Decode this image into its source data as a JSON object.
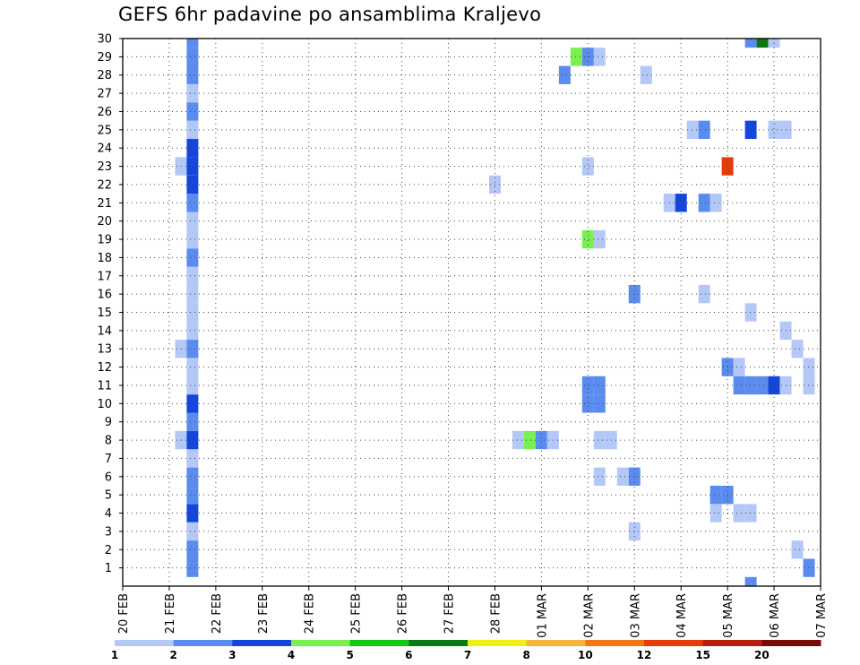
{
  "chart_data": {
    "type": "heatmap",
    "title": "GEFS 6hr padavine po ansamblima Kraljevo",
    "x_tick_labels": [
      "20 FEB",
      "21 FEB",
      "22 FEB",
      "23 FEB",
      "24 FEB",
      "25 FEB",
      "26 FEB",
      "27 FEB",
      "28 FEB",
      "01 MAR",
      "02 MAR",
      "03 MAR",
      "04 MAR",
      "05 MAR",
      "06 MAR",
      "07 MAR"
    ],
    "y_tick_labels": [
      "1",
      "2",
      "3",
      "4",
      "5",
      "6",
      "7",
      "8",
      "9",
      "10",
      "11",
      "12",
      "13",
      "14",
      "15",
      "16",
      "17",
      "18",
      "19",
      "20",
      "21",
      "22",
      "23",
      "24",
      "25",
      "26",
      "27",
      "28",
      "29",
      "30"
    ],
    "xlim": [
      0,
      15
    ],
    "ylim": [
      0,
      30
    ],
    "grid": true,
    "members": 30,
    "time_step_days": 0.25,
    "levels": [
      "1",
      "2",
      "3",
      "4",
      "5",
      "6",
      "7",
      "8",
      "10",
      "12",
      "15",
      "20"
    ],
    "level_colors": [
      "#b4c8f8",
      "#5a8cf0",
      "#1446dc",
      "#78f050",
      "#14c814",
      "#0a7814",
      "#f0f014",
      "#fab43c",
      "#f07814",
      "#e63c0a",
      "#b41e0a",
      "#780a0a"
    ],
    "colorbar_position": "bottom",
    "cells": [
      [
        1.5,
        1,
        2
      ],
      [
        1.5,
        2,
        2
      ],
      [
        1.5,
        3,
        1
      ],
      [
        1.5,
        4,
        3
      ],
      [
        1.5,
        5,
        2
      ],
      [
        1.5,
        6,
        2
      ],
      [
        1.5,
        7,
        1
      ],
      [
        1.25,
        8,
        1
      ],
      [
        1.5,
        8,
        3
      ],
      [
        1.5,
        9,
        2
      ],
      [
        1.5,
        10,
        3
      ],
      [
        1.5,
        11,
        1
      ],
      [
        1.5,
        12,
        1
      ],
      [
        1.25,
        13,
        1
      ],
      [
        1.5,
        13,
        2
      ],
      [
        1.5,
        14,
        1
      ],
      [
        1.5,
        15,
        1
      ],
      [
        1.5,
        16,
        1
      ],
      [
        1.5,
        17,
        1
      ],
      [
        1.5,
        18,
        2
      ],
      [
        1.5,
        19,
        1
      ],
      [
        1.5,
        20,
        1
      ],
      [
        1.5,
        21,
        2
      ],
      [
        1.5,
        22,
        3
      ],
      [
        1.25,
        23,
        1
      ],
      [
        1.5,
        23,
        3
      ],
      [
        1.5,
        24,
        3
      ],
      [
        1.5,
        25,
        1
      ],
      [
        1.5,
        26,
        2
      ],
      [
        1.5,
        27,
        1
      ],
      [
        1.5,
        28,
        2
      ],
      [
        1.5,
        29,
        2
      ],
      [
        1.5,
        30,
        2
      ],
      [
        8.0,
        22,
        1
      ],
      [
        8.5,
        8,
        1
      ],
      [
        8.75,
        8,
        4
      ],
      [
        9.0,
        8,
        2
      ],
      [
        9.25,
        8,
        1
      ],
      [
        9.75,
        29,
        4
      ],
      [
        10.0,
        29,
        2
      ],
      [
        10.25,
        29,
        1
      ],
      [
        9.5,
        28,
        2
      ],
      [
        10.0,
        23,
        1
      ],
      [
        10.0,
        19,
        4
      ],
      [
        10.25,
        19,
        1
      ],
      [
        10.0,
        11,
        2
      ],
      [
        10.25,
        11,
        2
      ],
      [
        10.0,
        10,
        2
      ],
      [
        10.25,
        10,
        2
      ],
      [
        10.25,
        8,
        1
      ],
      [
        10.5,
        8,
        1
      ],
      [
        10.25,
        6,
        1
      ],
      [
        10.75,
        6,
        1
      ],
      [
        11.0,
        6,
        2
      ],
      [
        11.0,
        16,
        2
      ],
      [
        11.0,
        3,
        1
      ],
      [
        11.25,
        28,
        1
      ],
      [
        11.75,
        21,
        1
      ],
      [
        12.0,
        21,
        3
      ],
      [
        12.5,
        21,
        2
      ],
      [
        12.75,
        21,
        1
      ],
      [
        12.25,
        25,
        1
      ],
      [
        12.5,
        25,
        2
      ],
      [
        12.5,
        16,
        1
      ],
      [
        12.75,
        5,
        2
      ],
      [
        13.0,
        5,
        2
      ],
      [
        12.75,
        4,
        1
      ],
      [
        13.25,
        4,
        1
      ],
      [
        13.5,
        4,
        1
      ],
      [
        13.0,
        12,
        2
      ],
      [
        13.25,
        12,
        1
      ],
      [
        13.0,
        23,
        10
      ],
      [
        13.25,
        11,
        2
      ],
      [
        13.5,
        11,
        2
      ],
      [
        13.75,
        11,
        2
      ],
      [
        14.0,
        11,
        3
      ],
      [
        14.25,
        11,
        1
      ],
      [
        13.5,
        15,
        1
      ],
      [
        13.5,
        25,
        3
      ],
      [
        14.0,
        25,
        1
      ],
      [
        14.25,
        25,
        1
      ],
      [
        13.5,
        30,
        2
      ],
      [
        13.75,
        30,
        6
      ],
      [
        14.0,
        30,
        1
      ],
      [
        13.5,
        0,
        2
      ],
      [
        14.25,
        14,
        1
      ],
      [
        14.5,
        13,
        1
      ],
      [
        14.5,
        2,
        1
      ],
      [
        14.75,
        12,
        1
      ],
      [
        14.75,
        11,
        1
      ],
      [
        14.75,
        1,
        2
      ]
    ]
  }
}
